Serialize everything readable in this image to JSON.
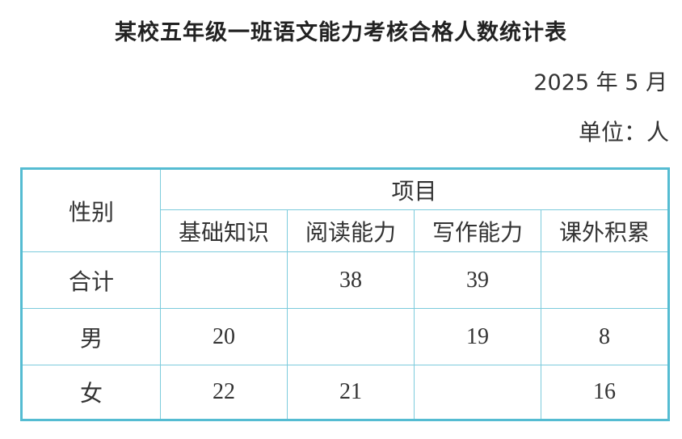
{
  "title": "某校五年级一班语文能力考核合格人数统计表",
  "date": "2025 年 5 月",
  "unit": "单位：人",
  "table": {
    "corner_header": "性别",
    "group_header": "项目",
    "columns": [
      "基础知识",
      "阅读能力",
      "写作能力",
      "课外积累"
    ],
    "rows": [
      {
        "label": "合计",
        "values": [
          "",
          "38",
          "39",
          ""
        ]
      },
      {
        "label": "男",
        "values": [
          "20",
          "",
          "19",
          "8"
        ]
      },
      {
        "label": "女",
        "values": [
          "22",
          "21",
          "",
          "16"
        ]
      }
    ]
  },
  "colors": {
    "border": "#55bcd2",
    "text": "#333333"
  }
}
